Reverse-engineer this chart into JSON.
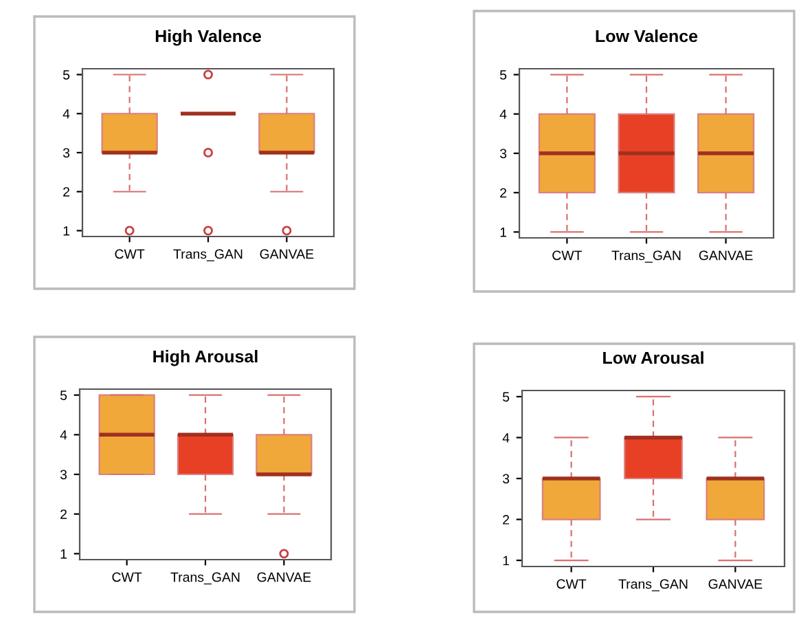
{
  "chart_data": [
    {
      "type": "box",
      "title": "High Valence",
      "categories": [
        "CWT",
        "Trans_GAN",
        "GANVAE"
      ],
      "colors": [
        "#f0a83a",
        null,
        "#f0a83a"
      ],
      "ylim": [
        0.85,
        5.15
      ],
      "yticks": [
        1,
        2,
        3,
        4,
        5
      ],
      "grid": false,
      "legend": false,
      "boxes": [
        {
          "low": 2,
          "q1": 3,
          "median": 3,
          "q3": 4,
          "high": 5,
          "outliers": [
            1
          ]
        },
        {
          "low": 4,
          "q1": 4,
          "median": 4,
          "q3": 4,
          "high": 4,
          "outliers": [
            5,
            3,
            1
          ]
        },
        {
          "low": 2,
          "q1": 3,
          "median": 3,
          "q3": 4,
          "high": 5,
          "outliers": [
            1
          ]
        }
      ]
    },
    {
      "type": "box",
      "title": "Low Valence",
      "categories": [
        "CWT",
        "Trans_GAN",
        "GANVAE"
      ],
      "colors": [
        "#f0a83a",
        "#e84025",
        "#f0a83a"
      ],
      "ylim": [
        0.85,
        5.15
      ],
      "yticks": [
        1,
        2,
        3,
        4,
        5
      ],
      "grid": false,
      "legend": false,
      "boxes": [
        {
          "low": 1,
          "q1": 2,
          "median": 3,
          "q3": 4,
          "high": 5
        },
        {
          "low": 1,
          "q1": 2,
          "median": 3,
          "q3": 4,
          "high": 5
        },
        {
          "low": 1,
          "q1": 2,
          "median": 3,
          "q3": 4,
          "high": 5
        }
      ]
    },
    {
      "type": "box",
      "title": "High Arousal",
      "categories": [
        "CWT",
        "Trans_GAN",
        "GANVAE"
      ],
      "colors": [
        "#f0a83a",
        "#e84025",
        "#f0a83a"
      ],
      "ylim": [
        0.85,
        5.15
      ],
      "yticks": [
        1,
        2,
        3,
        4,
        5
      ],
      "grid": false,
      "legend": false,
      "boxes": [
        {
          "low": 3,
          "q1": 3,
          "median": 4,
          "q3": 5,
          "high": 5
        },
        {
          "low": 2,
          "q1": 3,
          "median": 4,
          "q3": 4,
          "high": 5
        },
        {
          "low": 2,
          "q1": 3,
          "median": 3,
          "q3": 4,
          "high": 5,
          "outliers": [
            1
          ]
        }
      ]
    },
    {
      "type": "box",
      "title": "Low Arousal",
      "categories": [
        "CWT",
        "Trans_GAN",
        "GANVAE"
      ],
      "colors": [
        "#f0a83a",
        "#e84025",
        "#f0a83a"
      ],
      "ylim": [
        0.85,
        5.15
      ],
      "yticks": [
        1,
        2,
        3,
        4,
        5
      ],
      "grid": false,
      "legend": false,
      "boxes": [
        {
          "low": 1,
          "q1": 2,
          "median": 3,
          "q3": 3,
          "high": 4
        },
        {
          "low": 2,
          "q1": 3,
          "median": 4,
          "q3": 4,
          "high": 5
        },
        {
          "low": 1,
          "q1": 2,
          "median": 3,
          "q3": 3,
          "high": 4
        }
      ]
    }
  ]
}
